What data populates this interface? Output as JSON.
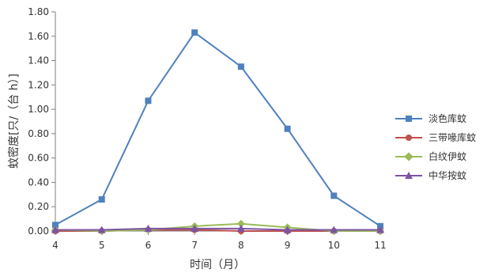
{
  "chart_data": {
    "type": "line",
    "x": [
      4,
      5,
      6,
      7,
      8,
      9,
      10,
      11
    ],
    "xlabel": "时间（月）",
    "ylabel": "蚊密度[只/（台 h）]",
    "ylim": [
      0,
      1.8
    ],
    "yticks": [
      0,
      0.2,
      0.4,
      0.6,
      0.8,
      1.0,
      1.2,
      1.4,
      1.6,
      1.8
    ],
    "ytick_labels": [
      "0.00",
      "0.20",
      "0.40",
      "0.60",
      "0.80",
      "1.00",
      "1.20",
      "1.40",
      "1.60",
      "1.80"
    ],
    "xtick_labels": [
      "4",
      "5",
      "6",
      "7",
      "8",
      "9",
      "10",
      "11"
    ],
    "legend_position": "right",
    "series": [
      {
        "name": "淡色库蚊",
        "values": [
          0.05,
          0.26,
          1.07,
          1.63,
          1.35,
          0.84,
          0.29,
          0.04
        ],
        "color": "#4F81BD",
        "marker": "square"
      },
      {
        "name": "三带喙库蚊",
        "values": [
          0.0,
          0.0,
          0.01,
          0.01,
          0.0,
          0.0,
          0.0,
          0.0
        ],
        "color": "#C0504D",
        "marker": "circle"
      },
      {
        "name": "白纹伊蚊",
        "values": [
          0.01,
          0.0,
          0.01,
          0.04,
          0.06,
          0.03,
          0.0,
          0.0
        ],
        "color": "#9BBB59",
        "marker": "diamond"
      },
      {
        "name": "中华按蚊",
        "values": [
          0.01,
          0.01,
          0.02,
          0.02,
          0.02,
          0.01,
          0.01,
          0.01
        ],
        "color": "#7B54A3",
        "marker": "triangle"
      }
    ]
  }
}
